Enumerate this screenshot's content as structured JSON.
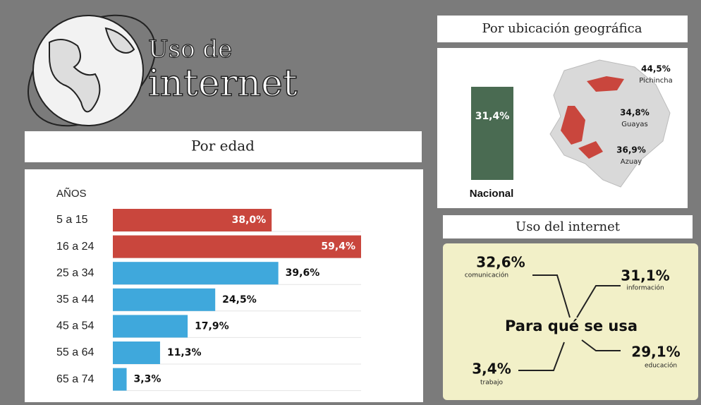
{
  "title": {
    "line1": "Uso de",
    "line2": "internet"
  },
  "by_age": {
    "heading": "Por edad",
    "axis_label": "AÑOS",
    "categories": [
      "5 a 15",
      "16 a 24",
      "25 a 34",
      "35 a 44",
      "45 a 54",
      "55 a 64",
      "65 a 74"
    ],
    "values": [
      38.0,
      59.4,
      39.6,
      24.5,
      17.9,
      11.3,
      3.3
    ],
    "value_labels": [
      "38,0%",
      "59,4%",
      "39,6%",
      "24,5%",
      "17,9%",
      "11,3%",
      "3,3%"
    ],
    "colors": [
      "#c9463d",
      "#c9463d",
      "#3fa8dc",
      "#3fa8dc",
      "#3fa8dc",
      "#3fa8dc",
      "#3fa8dc"
    ],
    "xlim": [
      0,
      59.4
    ]
  },
  "by_location": {
    "heading": "Por ubicación geográfica",
    "national_value": "31,4%",
    "national_label": "Nacional",
    "regions": [
      {
        "value": "44,5%",
        "name": "Pichincha"
      },
      {
        "value": "34,8%",
        "name": "Guayas"
      },
      {
        "value": "36,9%",
        "name": "Azuay"
      }
    ]
  },
  "usage": {
    "heading": "Uso del internet",
    "center": "Para qué se usa",
    "items": [
      {
        "value": "32,6%",
        "name": "comunicación"
      },
      {
        "value": "31,1%",
        "name": "información"
      },
      {
        "value": "29,1%",
        "name": "educación"
      },
      {
        "value": "3,4%",
        "name": "trabajo"
      }
    ]
  }
}
